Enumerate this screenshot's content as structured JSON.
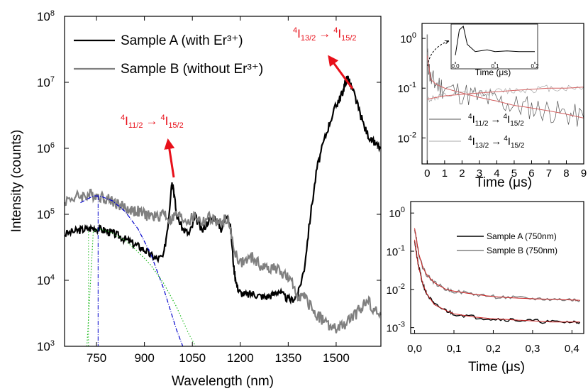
{
  "chart_data": [
    {
      "id": "main",
      "type": "line",
      "xlabel": "Wavelength (nm)",
      "ylabel": "Intensity (counts)",
      "xlim": [
        650,
        1640
      ],
      "ylim": [
        1000,
        100000000
      ],
      "yscale": "log",
      "xticks": [
        "750",
        "900",
        "1050",
        "1200",
        "1350",
        "1500"
      ],
      "yticks": [
        "10^3",
        "10^4",
        "10^5",
        "10^6",
        "10^7",
        "10^8"
      ],
      "legend_position": "top-left",
      "series": [
        {
          "name": "Sample A (with Er³⁺)",
          "color": "#000000",
          "x": [
            650,
            680,
            700,
            720,
            740,
            760,
            780,
            800,
            820,
            840,
            860,
            880,
            900,
            920,
            940,
            960,
            975,
            985,
            990,
            1000,
            1020,
            1040,
            1060,
            1080,
            1100,
            1120,
            1140,
            1160,
            1170,
            1180,
            1190,
            1200,
            1220,
            1240,
            1260,
            1280,
            1300,
            1320,
            1340,
            1360,
            1380,
            1400,
            1420,
            1440,
            1460,
            1480,
            1500,
            1510,
            1520,
            1530,
            1538,
            1545,
            1555,
            1570,
            1590,
            1610,
            1620,
            1640
          ],
          "y": [
            50000,
            55000,
            58000,
            60000,
            62000,
            60000,
            56000,
            52000,
            47000,
            42000,
            37000,
            33000,
            29000,
            24000,
            21000,
            23000,
            80000,
            300000,
            280000,
            100000,
            60000,
            50000,
            90000,
            55000,
            80000,
            90000,
            60000,
            100000,
            60000,
            15000,
            8000,
            6500,
            6000,
            6300,
            5800,
            5600,
            6000,
            7000,
            5500,
            5000,
            6000,
            15000,
            100000,
            500000,
            1200000,
            2500000,
            4500000,
            5500000,
            7000000,
            10500000,
            12000000,
            9000000,
            7000000,
            4000000,
            2000000,
            1300000,
            1200000,
            1000000
          ]
        },
        {
          "name": "Sample B (without Er³⁺)",
          "color": "#808080",
          "x": [
            650,
            680,
            700,
            720,
            740,
            760,
            780,
            800,
            820,
            840,
            860,
            880,
            900,
            920,
            940,
            960,
            980,
            1000,
            1020,
            1040,
            1060,
            1080,
            1100,
            1120,
            1140,
            1160,
            1180,
            1200,
            1220,
            1240,
            1260,
            1280,
            1300,
            1320,
            1340,
            1360,
            1380,
            1400,
            1420,
            1440,
            1460,
            1480,
            1500,
            1520,
            1540,
            1560,
            1580,
            1600,
            1620,
            1640
          ],
          "y": [
            160000,
            180000,
            190000,
            195000,
            200000,
            190000,
            175000,
            160000,
            140000,
            125000,
            115000,
            110000,
            100000,
            95000,
            90000,
            110000,
            80000,
            100000,
            85000,
            80000,
            95000,
            75000,
            90000,
            80000,
            70000,
            90000,
            30000,
            18000,
            20000,
            22000,
            17000,
            15000,
            16000,
            14000,
            12000,
            9000,
            6000,
            5500,
            4000,
            3000,
            2500,
            2000,
            1800,
            2000,
            2500,
            3000,
            4000,
            5000,
            3500,
            3000
          ]
        },
        {
          "name": "",
          "color": "#0000cc",
          "style": "dash-dot",
          "x": [
            700,
            740,
            760,
            800,
            840,
            880,
            920,
            960,
            1000,
            1020
          ],
          "y": [
            150000,
            190000,
            190000,
            160000,
            110000,
            60000,
            25000,
            7500,
            1800,
            1000
          ]
        },
        {
          "name": "",
          "color": "#22bb22",
          "style": "dotted",
          "x": [
            720,
            740,
            760,
            800,
            840,
            880,
            920,
            960,
            1000,
            1040,
            1060
          ],
          "y": [
            1000,
            55000,
            60000,
            52000,
            40000,
            27000,
            17000,
            9000,
            4000,
            1500,
            1000
          ]
        }
      ],
      "annotations": [
        {
          "pre": "4",
          "main": "I",
          "sub": "11/2",
          "arrow": "→",
          "pre2": "4",
          "main2": "I",
          "sub2": "15/2",
          "color": "#e8101a"
        },
        {
          "pre": "4",
          "main": "I",
          "sub": "13/2",
          "arrow": "→",
          "pre2": "4",
          "main2": "I",
          "sub2": "15/2",
          "color": "#e8101a"
        }
      ]
    },
    {
      "id": "top-right",
      "type": "line",
      "xlabel": "Time (μs)",
      "xlim": [
        -0.3,
        9
      ],
      "ylim": [
        0.003,
        2
      ],
      "yscale": "log",
      "xticks": [
        "0",
        "1",
        "2",
        "3",
        "4",
        "5",
        "6",
        "7",
        "8",
        "9"
      ],
      "yticks": [
        "10^0",
        "10^-1",
        "10^-2"
      ],
      "series": [
        {
          "name": "4I11/2 → 4I15/2",
          "color": "#555555",
          "x": [
            0,
            0.2,
            0.5,
            1,
            2,
            3,
            4,
            5,
            6,
            7,
            8,
            9
          ],
          "y": [
            0.45,
            0.15,
            0.12,
            0.1,
            0.08,
            0.065,
            0.055,
            0.045,
            0.04,
            0.035,
            0.03,
            0.025
          ]
        },
        {
          "name": "4I13/2 → 4I15/2",
          "color": "#aaaaaa",
          "x": [
            0,
            0.5,
            1,
            2,
            3,
            4,
            5,
            6,
            7,
            8,
            9
          ],
          "y": [
            0.06,
            0.065,
            0.07,
            0.075,
            0.08,
            0.085,
            0.09,
            0.095,
            0.1,
            0.1,
            0.105
          ]
        }
      ],
      "legend": [
        {
          "pre": "4",
          "main": "I",
          "sub": "11/2",
          "arrow": "→",
          "pre2": "4",
          "main2": "I",
          "sub2": "15/2"
        },
        {
          "pre": "4",
          "main": "I",
          "sub": "13/2",
          "arrow": "→",
          "pre2": "4",
          "main2": "I",
          "sub2": "15/2"
        }
      ],
      "inset": {
        "xlabel": "Time (μs)",
        "xticks": [
          "0,0",
          "0,1",
          "0,2"
        ],
        "x": [
          0,
          0.01,
          0.02,
          0.03,
          0.05,
          0.08,
          0.1,
          0.13,
          0.16,
          0.2
        ],
        "y": [
          0.2,
          0.9,
          1.0,
          0.5,
          0.3,
          0.35,
          0.3,
          0.32,
          0.3,
          0.3
        ]
      }
    },
    {
      "id": "bottom-right",
      "type": "line",
      "xlabel": "Time (μs)",
      "xlim": [
        -0.01,
        0.43
      ],
      "ylim": [
        0.0007,
        2
      ],
      "yscale": "log",
      "xticks": [
        "0,0",
        "0,1",
        "0,2",
        "0,3",
        "0,4"
      ],
      "yticks": [
        "10^0",
        "10^-1",
        "10^-2",
        "10^-3"
      ],
      "legend_position": "top-right",
      "series": [
        {
          "name": "Sample A (750nm)",
          "color": "#000000",
          "x": [
            0,
            0.005,
            0.01,
            0.02,
            0.03,
            0.05,
            0.08,
            0.1,
            0.15,
            0.2,
            0.25,
            0.3,
            0.35,
            0.4,
            0.42
          ],
          "y": [
            0.2,
            0.08,
            0.04,
            0.015,
            0.008,
            0.004,
            0.0028,
            0.0023,
            0.0019,
            0.0017,
            0.0016,
            0.0015,
            0.0014,
            0.0014,
            0.0014
          ]
        },
        {
          "name": "Sample B (750nm)",
          "color": "#808080",
          "x": [
            0,
            0.005,
            0.01,
            0.02,
            0.03,
            0.05,
            0.08,
            0.1,
            0.15,
            0.2,
            0.25,
            0.3,
            0.35,
            0.4,
            0.42
          ],
          "y": [
            0.4,
            0.2,
            0.09,
            0.04,
            0.025,
            0.015,
            0.01,
            0.009,
            0.0075,
            0.0065,
            0.006,
            0.0057,
            0.0055,
            0.0053,
            0.0052
          ]
        }
      ]
    }
  ]
}
